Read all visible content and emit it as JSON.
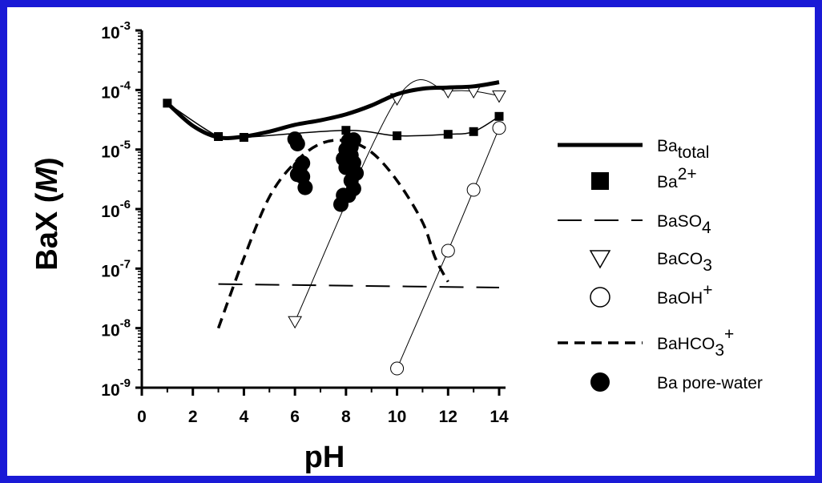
{
  "chart_data": {
    "type": "scatter",
    "xlabel": "pH",
    "ylabel": "BaX",
    "ylabel_unit": "M",
    "xlim": [
      0,
      14
    ],
    "ylim_log10": [
      -9,
      -3
    ],
    "y_scale": "log",
    "grid": false,
    "legend_position": "right",
    "x_ticks": [
      "0",
      "2",
      "4",
      "6",
      "8",
      "10",
      "12",
      "14"
    ],
    "y_ticks": [
      {
        "base": "10",
        "exp": "-9",
        "v": 1e-09
      },
      {
        "base": "10",
        "exp": "-8",
        "v": 1e-08
      },
      {
        "base": "10",
        "exp": "-7",
        "v": 1e-07
      },
      {
        "base": "10",
        "exp": "-6",
        "v": 1e-06
      },
      {
        "base": "10",
        "exp": "-5",
        "v": 1e-05
      },
      {
        "base": "10",
        "exp": "-4",
        "v": 0.0001
      },
      {
        "base": "10",
        "exp": "-3",
        "v": 0.001
      }
    ],
    "series": [
      {
        "name": "Ba_total",
        "style": "thick-solid",
        "x": [
          1,
          2,
          3,
          4,
          5,
          6,
          7,
          8,
          9,
          10,
          11,
          12,
          13,
          14
        ],
        "y": [
          6e-05,
          2.5e-05,
          1.6e-05,
          1.65e-05,
          2e-05,
          2.6e-05,
          3.1e-05,
          3.9e-05,
          5.5e-05,
          8.5e-05,
          0.000105,
          0.00011,
          0.000115,
          0.000135
        ]
      },
      {
        "name": "Ba2+",
        "style": "thin-line-filled-square",
        "x": [
          1,
          3,
          4,
          8,
          10,
          12,
          13,
          14
        ],
        "y": [
          6e-05,
          1.65e-05,
          1.6e-05,
          2.1e-05,
          1.7e-05,
          1.8e-05,
          2e-05,
          3.6e-05
        ]
      },
      {
        "name": "BaSO4",
        "style": "long-dash",
        "x": [
          3,
          14
        ],
        "y": [
          5.5e-08,
          4.8e-08
        ]
      },
      {
        "name": "BaCO3",
        "style": "thin-line-open-triangle",
        "x": [
          6,
          10,
          12,
          13,
          14
        ],
        "y": [
          1.3e-08,
          7.2e-05,
          9.5e-05,
          9.5e-05,
          8e-05
        ]
      },
      {
        "name": "BaOH+",
        "style": "thin-line-open-circle",
        "x": [
          10,
          12,
          13,
          14
        ],
        "y": [
          2.1e-09,
          2e-07,
          2.1e-06,
          2.3e-05
        ]
      },
      {
        "name": "BaHCO3+",
        "style": "short-dash",
        "x": [
          3,
          4,
          5,
          6,
          7,
          8,
          9,
          10,
          11,
          11.5,
          12
        ],
        "y": [
          1e-08,
          1.5e-07,
          1.6e-06,
          6e-06,
          1.25e-05,
          1.4e-05,
          9e-06,
          3e-06,
          6e-07,
          1.5e-07,
          6e-08
        ]
      },
      {
        "name": "Ba pore-water",
        "style": "filled-circle",
        "x": [
          6,
          6.1,
          6.2,
          6.3,
          6.4,
          6.3,
          6.1,
          7.8,
          7.9,
          8,
          8,
          8.1,
          8.2,
          8.2,
          8.3,
          8.3,
          8.4,
          8.2,
          8.1,
          7.9,
          8.3
        ],
        "y": [
          1.5e-05,
          1.25e-05,
          5e-06,
          3.5e-06,
          2.3e-06,
          5.9e-06,
          3.8e-06,
          1.2e-06,
          1.7e-06,
          5e-06,
          1e-05,
          1.4e-05,
          8e-06,
          3e-06,
          6e-06,
          2.2e-06,
          4e-06,
          1.1e-05,
          1.7e-06,
          7e-06,
          1.45e-05
        ]
      }
    ]
  },
  "legend": [
    {
      "name": "Ba",
      "sub": "total",
      "sup": "",
      "key": "thick-solid"
    },
    {
      "name": "Ba",
      "sub": "",
      "sup": "2+",
      "key": "filled-square"
    },
    {
      "name": "BaSO",
      "sub": "4",
      "sup": "",
      "key": "long-dash"
    },
    {
      "name": "BaCO",
      "sub": "3",
      "sup": "",
      "key": "open-triangle"
    },
    {
      "name": "BaOH",
      "sub": "",
      "sup": "+",
      "key": "open-circle"
    },
    {
      "name": "BaHCO",
      "sub": "3",
      "sup": "+",
      "key": "short-dash"
    },
    {
      "name": "Ba pore-water",
      "sub": "",
      "sup": "",
      "key": "filled-circle"
    }
  ]
}
